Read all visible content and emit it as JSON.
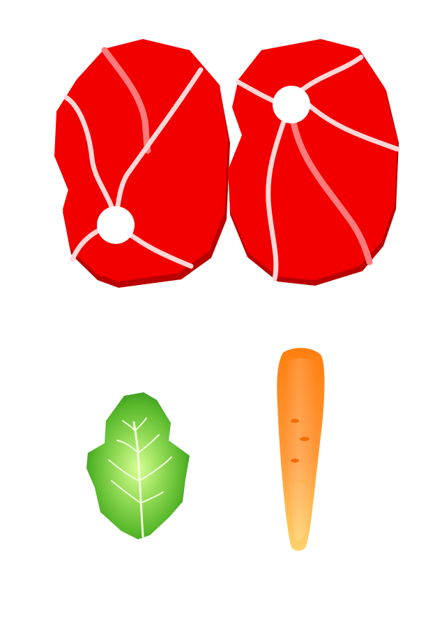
{
  "scene": {
    "background": "#ffffff",
    "items": [
      {
        "name": "steak-left-icon",
        "color": "#f20000",
        "shadow": "#b80000",
        "marbling": "#ffd6d6"
      },
      {
        "name": "steak-right-icon",
        "color": "#f20000",
        "shadow": "#b80000",
        "marbling": "#ffd6d6"
      },
      {
        "name": "lettuce-leaf-icon",
        "color": "#59b82b",
        "highlight": "#d6ff94",
        "vein": "#f3ffe0"
      },
      {
        "name": "carrot-icon",
        "color": "#ff7f0f",
        "tip": "#ffd36b",
        "marks": "#f36d0b"
      }
    ]
  }
}
